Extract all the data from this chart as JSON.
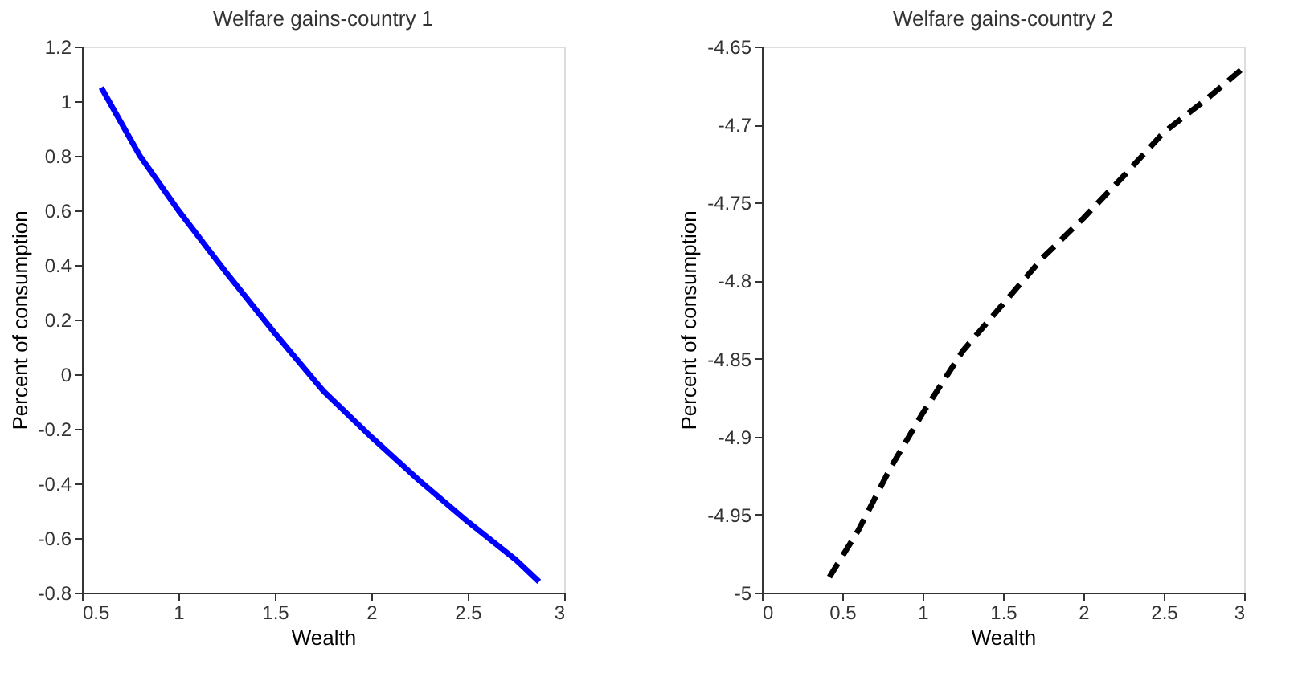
{
  "chart_data": [
    {
      "type": "line",
      "title": "Welfare gains-country 1",
      "xlabel": "Wealth",
      "ylabel": "Percent of consumption",
      "xlim": [
        0.5,
        3
      ],
      "xticks": [
        0.5,
        1,
        1.5,
        2,
        2.5,
        3
      ],
      "ylim": [
        -0.8,
        1.2
      ],
      "yticks": [
        -0.8,
        -0.6,
        -0.4,
        -0.2,
        0,
        0.2,
        0.4,
        0.6,
        0.8,
        1,
        1.2
      ],
      "grid": false,
      "line_style": "solid",
      "series": [
        {
          "color": "#0000ff",
          "x": [
            0.6,
            0.8,
            1.0,
            1.25,
            1.5,
            1.75,
            2.0,
            2.25,
            2.5,
            2.75,
            2.87
          ],
          "values": [
            1.05,
            0.8,
            0.6,
            0.37,
            0.15,
            -0.06,
            -0.23,
            -0.39,
            -0.54,
            -0.68,
            -0.76
          ]
        }
      ]
    },
    {
      "type": "line",
      "title": "Welfare gains-country 2",
      "xlabel": "Wealth",
      "ylabel": "Percent of consumption",
      "xlim": [
        0,
        3
      ],
      "xticks": [
        0,
        0.5,
        1,
        1.5,
        2,
        2.5,
        3
      ],
      "ylim": [
        -5,
        -4.65
      ],
      "yticks": [
        -5,
        -4.95,
        -4.9,
        -4.85,
        -4.8,
        -4.75,
        -4.7,
        -4.65
      ],
      "grid": false,
      "line_style": "dashed",
      "series": [
        {
          "color": "#000000",
          "x": [
            0.42,
            0.6,
            0.8,
            1.0,
            1.25,
            1.5,
            1.75,
            2.0,
            2.25,
            2.5,
            2.75,
            2.98
          ],
          "values": [
            -4.99,
            -4.96,
            -4.92,
            -4.885,
            -4.845,
            -4.815,
            -4.785,
            -4.76,
            -4.733,
            -4.705,
            -4.685,
            -4.665
          ]
        }
      ]
    }
  ]
}
